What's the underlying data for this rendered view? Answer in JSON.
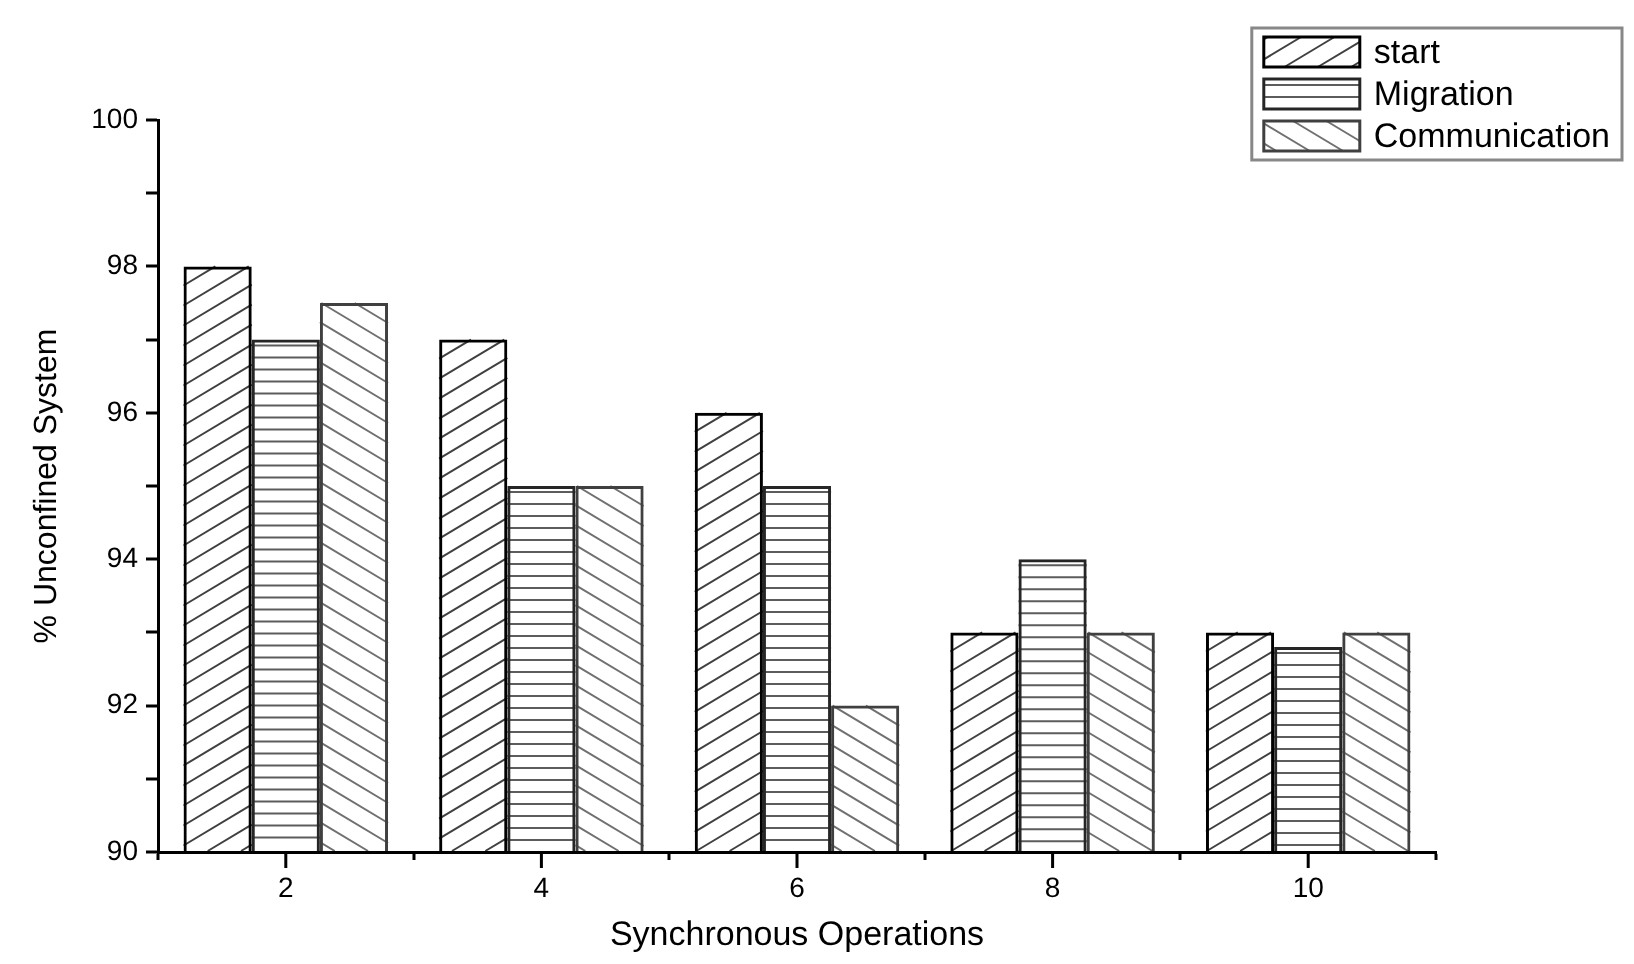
{
  "chart_data": {
    "type": "bar",
    "xlabel": "Synchronous Operations",
    "ylabel": "% Unconfined System",
    "categories": [
      "2",
      "4",
      "6",
      "8",
      "10"
    ],
    "series": [
      {
        "name": "start",
        "color": "#000000",
        "values": [
          98,
          97,
          96,
          93,
          93
        ]
      },
      {
        "name": "Migration",
        "color": "#262626",
        "values": [
          97,
          95,
          95,
          94,
          92.8
        ]
      },
      {
        "name": "Communication",
        "color": "#404040",
        "values": [
          97.5,
          95,
          92,
          93,
          93
        ]
      }
    ],
    "ylim": [
      90,
      100
    ],
    "yticks": [
      90,
      {
        "value": 91,
        "label": null
      },
      92,
      {
        "value": 93,
        "label": null
      },
      94,
      {
        "value": 95,
        "label": null
      },
      96,
      {
        "value": 97,
        "label": null
      },
      98,
      {
        "value": 99,
        "label": null
      },
      100
    ],
    "legend": "top right"
  }
}
